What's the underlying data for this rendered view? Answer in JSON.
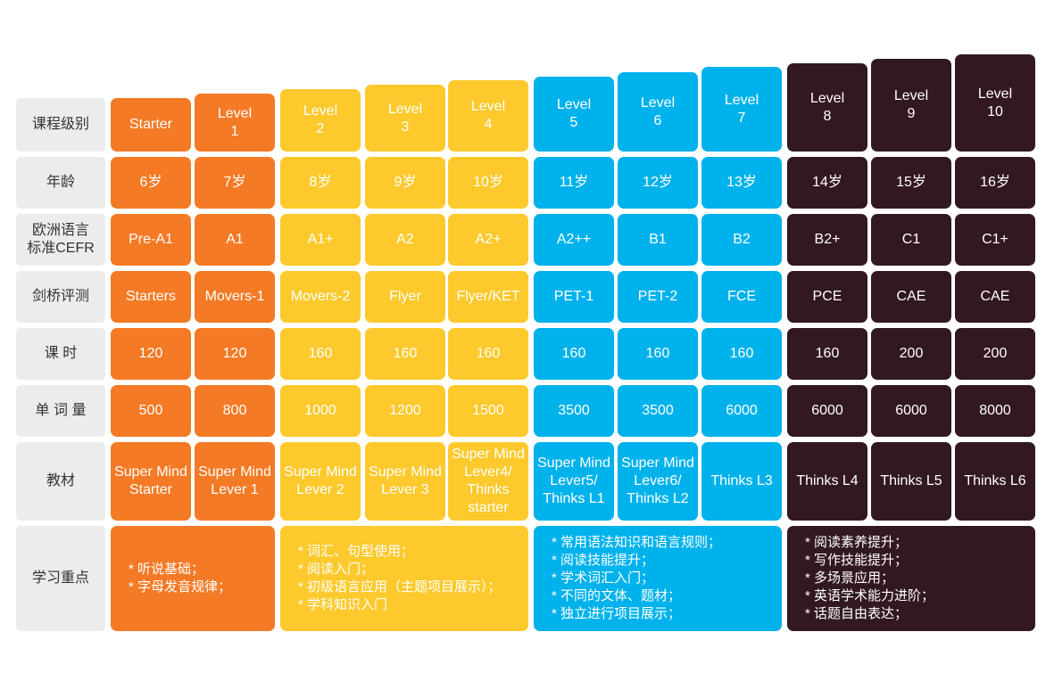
{
  "row_headers": [
    "课程级别",
    "年龄",
    "欧洲语言\n标准CEFR",
    "剑桥评测",
    "课 时",
    "单 词 量",
    "教材",
    "学习重点"
  ],
  "columns": [
    {
      "theme": "orange",
      "level": "Starter",
      "age": "6岁",
      "cefr": "Pre-A1",
      "cambridge": "Starters",
      "hours": "120",
      "vocab": "500",
      "material": "Super Mind\nStarter"
    },
    {
      "theme": "orange",
      "level": "Level\n1",
      "age": "7岁",
      "cefr": "A1",
      "cambridge": "Movers-1",
      "hours": "120",
      "vocab": "800",
      "material": "Super Mind\nLever 1"
    },
    {
      "theme": "yellow",
      "level": "Level\n2",
      "age": "8岁",
      "cefr": "A1+",
      "cambridge": "Movers-2",
      "hours": "160",
      "vocab": "1000",
      "material": "Super Mind\nLever 2"
    },
    {
      "theme": "yellow",
      "level": "Level\n3",
      "age": "9岁",
      "cefr": "A2",
      "cambridge": "Flyer",
      "hours": "160",
      "vocab": "1200",
      "material": "Super Mind\nLever 3"
    },
    {
      "theme": "yellow",
      "level": "Level\n4",
      "age": "10岁",
      "cefr": "A2+",
      "cambridge": "Flyer/KET",
      "hours": "160",
      "vocab": "1500",
      "material": "Super Mind\nLever4/\nThinks\nstarter"
    },
    {
      "theme": "blue",
      "level": "Level\n5",
      "age": "11岁",
      "cefr": "A2++",
      "cambridge": "PET-1",
      "hours": "160",
      "vocab": "3500",
      "material": "Super Mind\nLever5/\nThinks L1"
    },
    {
      "theme": "blue",
      "level": "Level\n6",
      "age": "12岁",
      "cefr": "B1",
      "cambridge": "PET-2",
      "hours": "160",
      "vocab": "3500",
      "material": "Super Mind\nLever6/\nThinks L2"
    },
    {
      "theme": "blue",
      "level": "Level\n7",
      "age": "13岁",
      "cefr": "B2",
      "cambridge": "FCE",
      "hours": "160",
      "vocab": "6000",
      "material": "Thinks L3"
    },
    {
      "theme": "dark",
      "level": "Level\n8",
      "age": "14岁",
      "cefr": "B2+",
      "cambridge": "PCE",
      "hours": "160",
      "vocab": "6000",
      "material": "Thinks L4"
    },
    {
      "theme": "dark",
      "level": "Level\n9",
      "age": "15岁",
      "cefr": "C1",
      "cambridge": "CAE",
      "hours": "200",
      "vocab": "6000",
      "material": "Thinks L5"
    },
    {
      "theme": "dark",
      "level": "Level\n10",
      "age": "16岁",
      "cefr": "C1+",
      "cambridge": "CAE",
      "hours": "200",
      "vocab": "8000",
      "material": "Thinks L6"
    }
  ],
  "focus": [
    {
      "theme": "orange",
      "span": [
        0,
        1
      ],
      "lines": [
        "* 听说基础；",
        "* 字母发音规律；"
      ]
    },
    {
      "theme": "yellow",
      "span": [
        2,
        4
      ],
      "lines": [
        "* 词汇、句型使用；",
        "* 阅读入门；",
        "* 初级语言应用（主题项目展示）；",
        "* 学科知识入门"
      ]
    },
    {
      "theme": "blue",
      "span": [
        5,
        7
      ],
      "lines": [
        "* 常用语法知识和语言规则；",
        "* 阅读技能提升；",
        "* 学术词汇入门；",
        "* 不同的文体、题材；",
        "* 独立进行项目展示；"
      ]
    },
    {
      "theme": "dark",
      "span": [
        8,
        10
      ],
      "lines": [
        "* 阅读素养提升；",
        "* 写作技能提升；",
        "* 多场景应用；",
        "* 英语学术能力进阶；",
        "* 话题自由表达；"
      ]
    }
  ],
  "colors": {
    "orange": "#f47a25",
    "yellow": "#fdc92c",
    "blue": "#00b2ec",
    "dark": "#321820",
    "header": "#ececec"
  }
}
